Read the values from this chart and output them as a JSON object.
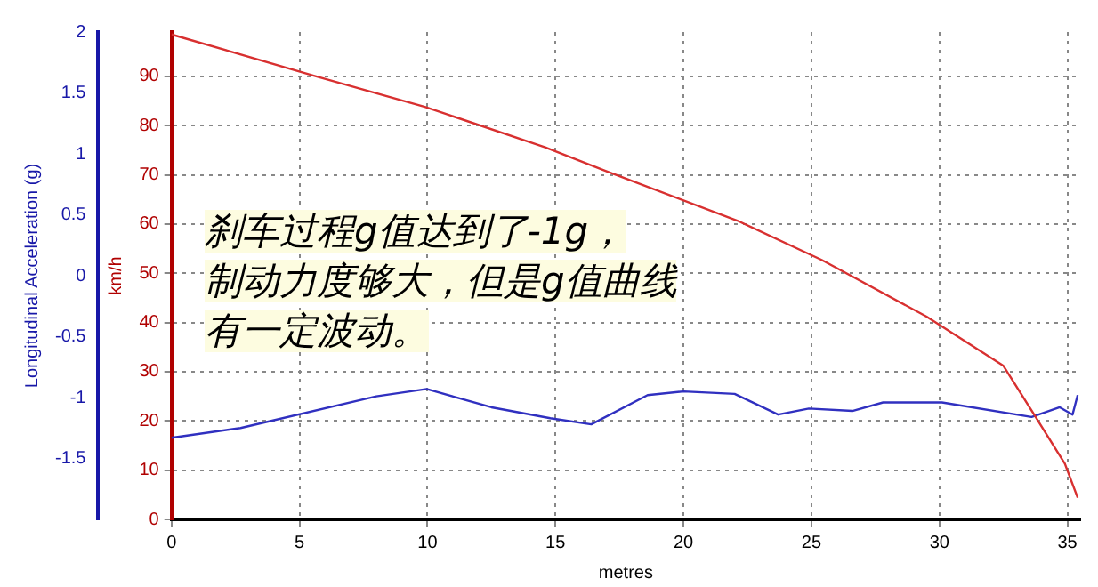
{
  "chart_data": {
    "type": "line",
    "xlabel": "metres",
    "ylabel": "km/h",
    "y2label": "Longitudinal Acceleration (g)",
    "annotations": [
      "刹车过程g值达到了-1g，",
      "制动力度够大，但是g值曲线",
      "有一定波动。"
    ],
    "xlim": [
      0,
      35.5
    ],
    "xticks": [
      0,
      5,
      10,
      15,
      20,
      25,
      30,
      35
    ],
    "ylim": [
      0,
      99
    ],
    "yticks": [
      0,
      10,
      20,
      30,
      40,
      50,
      60,
      70,
      80,
      90
    ],
    "y2lim": [
      -2,
      2
    ],
    "y2ticks": [
      -1.5,
      -1,
      -0.5,
      0,
      0.5,
      1,
      1.5,
      2
    ],
    "grid": true,
    "legend": false,
    "marker": "none",
    "series": [
      {
        "color": "#d83030",
        "x": [
          0,
          5.65,
          9.9,
          14.6,
          17.0,
          22.1,
          25.4,
          29.5,
          32.5,
          33.7,
          34.9,
          35.4
        ],
        "values": [
          98.5,
          90,
          83.8,
          75.6,
          70.7,
          60.7,
          52.7,
          41.2,
          31.2,
          21.3,
          11.3,
          4.4
        ]
      },
      {
        "color": "#3030c0",
        "axis": "y2",
        "x": [
          0,
          2.7,
          8.0,
          9.97,
          12.5,
          14.8,
          16.4,
          18.6,
          20.0,
          22.0,
          23.7,
          24.9,
          26.6,
          27.8,
          30.1,
          33.6,
          34.7,
          35.2,
          35.4
        ],
        "values": [
          -1.33,
          -1.25,
          -0.99,
          -0.93,
          -1.08,
          -1.17,
          -1.22,
          -0.98,
          -0.95,
          -0.97,
          -1.14,
          -1.09,
          -1.11,
          -1.04,
          -1.04,
          -1.16,
          -1.08,
          -1.14,
          -0.98
        ]
      }
    ]
  }
}
